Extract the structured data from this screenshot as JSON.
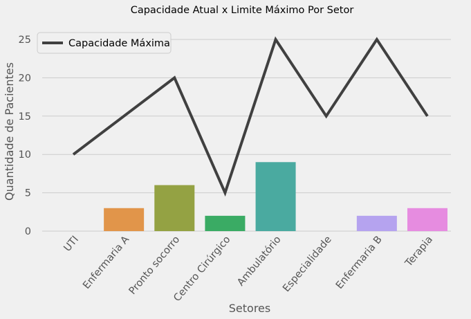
{
  "chart_data": {
    "type": "bar",
    "title": "Capacidade Atual x Limite Máximo Por Setor",
    "xlabel": "Setores",
    "ylabel": "Quantidade de Pacientes",
    "categories": [
      "UTI",
      "Enfermaria A",
      "Pronto socorro",
      "Centro Cirúrgico",
      "Ambulatório",
      "Especialidade",
      "Enfermaria B",
      "Terapia"
    ],
    "bar_series": {
      "values": [
        0,
        3,
        6,
        2,
        9,
        0,
        2,
        3
      ],
      "colors": [
        "#3274a1",
        "#e1954a",
        "#94a243",
        "#3aab64",
        "#4aaaa0",
        "#8ea8d2",
        "#b5a3ef",
        "#e68ce0"
      ]
    },
    "line_series": {
      "name": "Capacidade Máxima",
      "values": [
        10,
        15,
        20,
        5,
        25,
        15,
        25,
        15
      ],
      "color": "#404040"
    },
    "ylim": [
      0,
      27
    ],
    "yticks": [
      0,
      5,
      10,
      15,
      20,
      25
    ],
    "grid": true,
    "legend_position": "top-left"
  }
}
